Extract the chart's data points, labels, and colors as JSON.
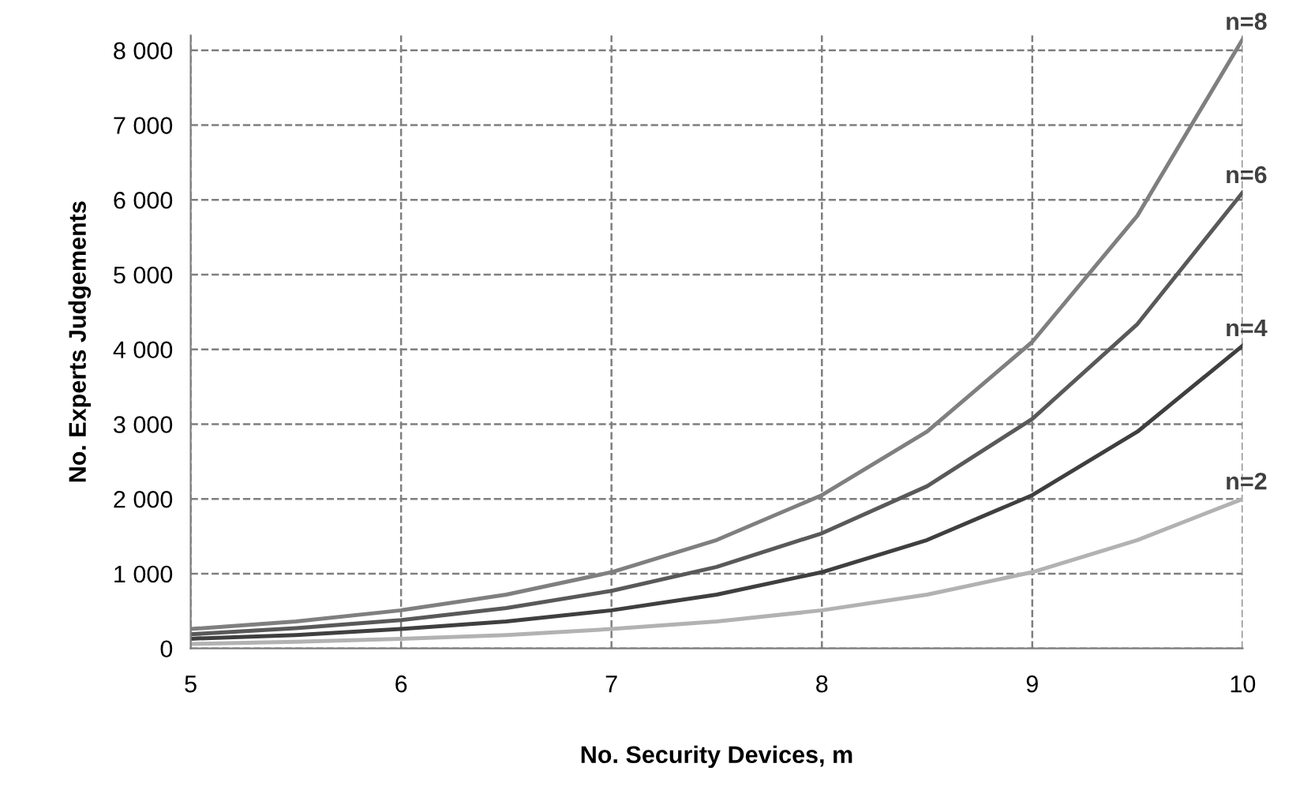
{
  "chart_data": {
    "type": "line",
    "xlabel": "No. Security Devices, m",
    "ylabel": "No. Experts Judgements",
    "x": [
      5,
      5.5,
      6,
      6.5,
      7,
      7.5,
      8,
      8.5,
      9,
      9.5,
      10
    ],
    "series": [
      {
        "name": "n=8",
        "color": "#7f7f7f",
        "values": [
          260,
          360,
          510,
          720,
          1020,
          1450,
          2050,
          2900,
          4100,
          5790,
          8150
        ]
      },
      {
        "name": "n=6",
        "color": "#595959",
        "values": [
          190,
          270,
          380,
          540,
          770,
          1090,
          1540,
          2170,
          3070,
          4340,
          6100
        ]
      },
      {
        "name": "n=4",
        "color": "#3f3f3f",
        "values": [
          130,
          180,
          260,
          360,
          510,
          720,
          1020,
          1450,
          2050,
          2900,
          4050
        ]
      },
      {
        "name": "n=2",
        "color": "#b2b2b2",
        "values": [
          60,
          90,
          130,
          180,
          260,
          360,
          510,
          720,
          1020,
          1450,
          2000
        ]
      }
    ],
    "xlim": [
      5,
      10
    ],
    "xticks": [
      5,
      6,
      7,
      8,
      9,
      10
    ],
    "ylim": [
      0,
      8200
    ],
    "yticks": [
      0,
      {
        "value": 1000,
        "label": "1 000"
      },
      {
        "value": 2000,
        "label": "2 000"
      },
      {
        "value": 3000,
        "label": "3 000"
      },
      {
        "value": 4000,
        "label": "4 000"
      },
      {
        "value": 5000,
        "label": "5 000"
      },
      {
        "value": 6000,
        "label": "6 000"
      },
      {
        "value": 7000,
        "label": "7 000"
      },
      {
        "value": 8000,
        "label": "8 000"
      }
    ],
    "grid": true,
    "legend": false,
    "marker": "none",
    "line_style": "solid"
  }
}
